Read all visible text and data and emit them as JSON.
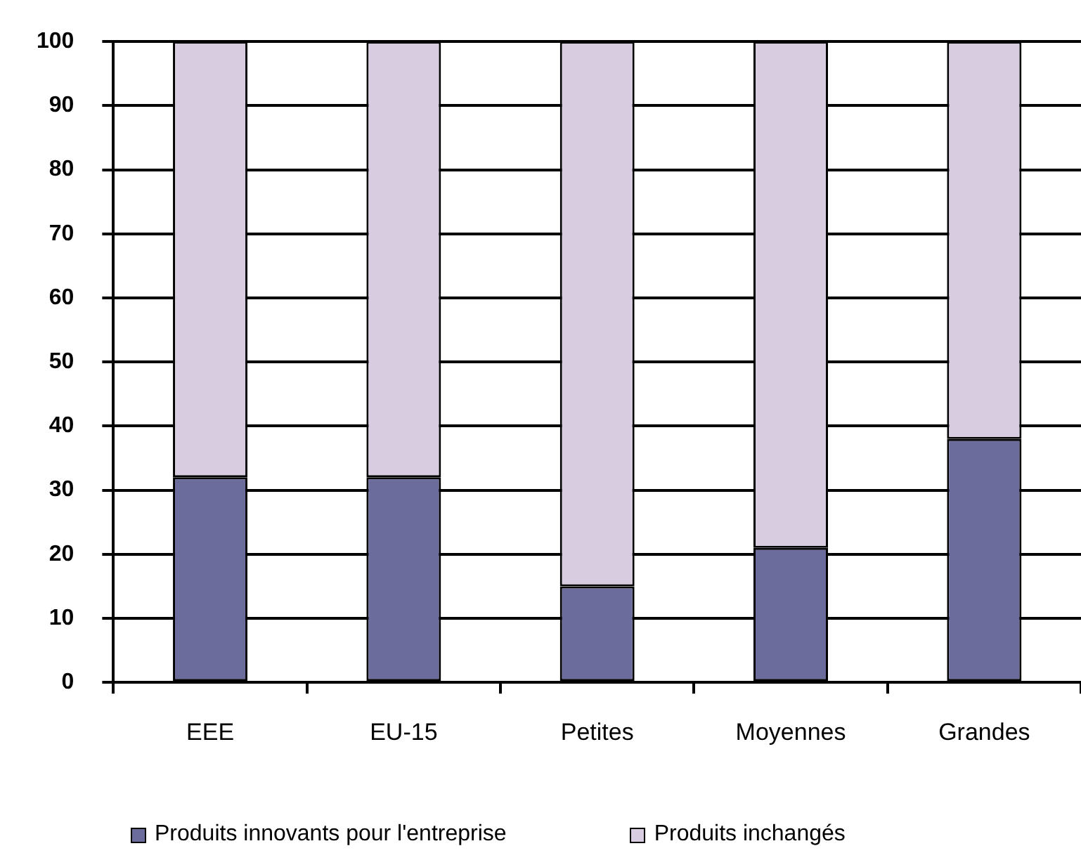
{
  "chart_data": {
    "type": "bar",
    "stacked": true,
    "categories": [
      "EEE",
      "EU-15",
      "Petites",
      "Moyennes",
      "Grandes"
    ],
    "series": [
      {
        "name": "Produits innovants pour l'entreprise",
        "color": "#6b6b9c",
        "values": [
          32,
          32,
          15,
          21,
          38
        ]
      },
      {
        "name": "Produits inchangés",
        "color": "#d8cce0",
        "values": [
          68,
          68,
          85,
          79,
          62
        ]
      }
    ],
    "ylim": [
      0,
      100
    ],
    "yticks": [
      0,
      10,
      20,
      30,
      40,
      50,
      60,
      70,
      80,
      90,
      100
    ],
    "grid": "y",
    "legend": "bottom"
  }
}
